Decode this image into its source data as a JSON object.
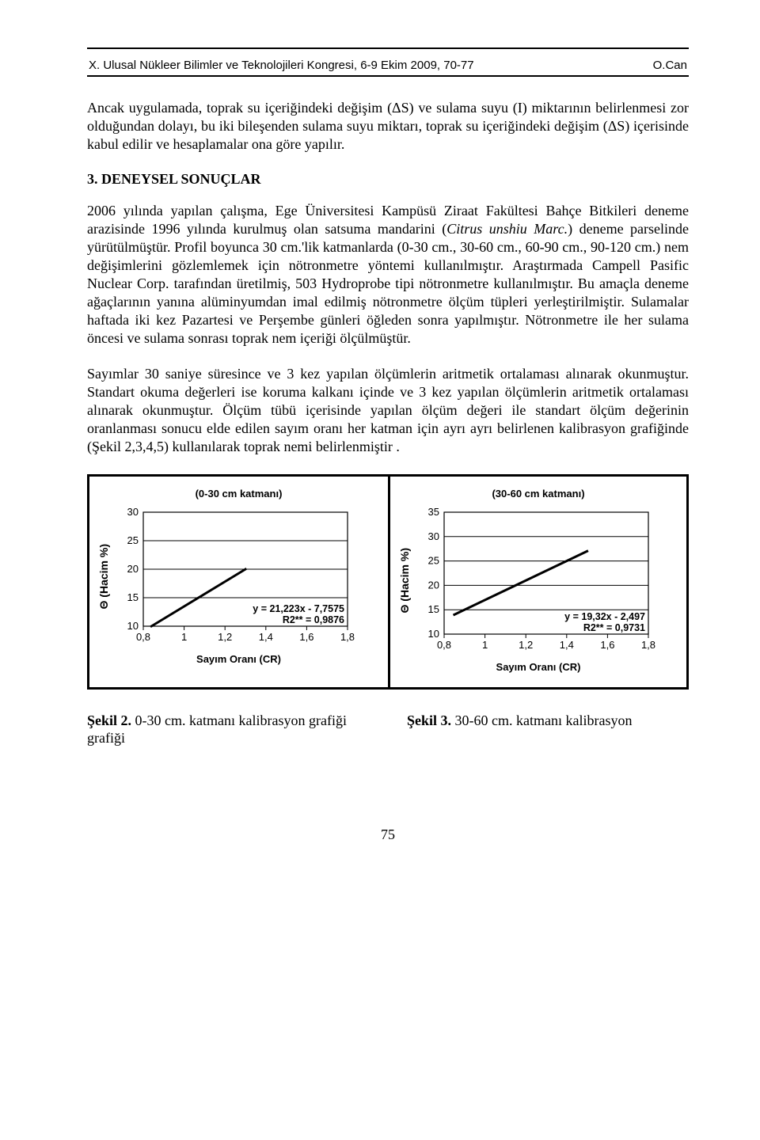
{
  "header": {
    "left": "X. Ulusal Nükleer Bilimler ve Teknolojileri Kongresi, 6-9 Ekim 2009, 70-77",
    "right": "O.Can"
  },
  "para_intro": "Ancak uygulamada, toprak su içeriğindeki değişim (ΔS) ve sulama suyu (I) miktarının belirlenmesi zor olduğundan dolayı, bu iki bileşenden sulama suyu miktarı, toprak su içeriğindeki değişim (ΔS) içerisinde kabul edilir ve hesaplamalar ona göre yapılır.",
  "section_title": "3. DENEYSEL SONUÇLAR",
  "para1_a": "2006 yılında yapılan çalışma, Ege Üniversitesi Kampüsü Ziraat Fakültesi Bahçe Bitkileri deneme arazisinde 1996 yılında kurulmuş olan satsuma mandarini (",
  "para1_it": "Citrus unshiu Marc.",
  "para1_b": ") deneme parselinde yürütülmüştür. Profil boyunca 30 cm.'lik katmanlarda (0-30 cm., 30-60 cm., 60-90 cm., 90-120 cm.) nem değişimlerini gözlemlemek için nötronmetre yöntemi kullanılmıştır. Araştırmada Campell Pasific Nuclear Corp. tarafından üretilmiş, 503 Hydroprobe tipi nötronmetre kullanılmıştır. Bu amaçla deneme ağaçlarının yanına alüminyumdan imal edilmiş nötronmetre ölçüm tüpleri yerleştirilmiştir. Sulamalar haftada iki kez Pazartesi ve Perşembe günleri öğleden sonra yapılmıştır. Nötronmetre ile her sulama öncesi ve sulama sonrası toprak nem içeriği ölçülmüştür.",
  "para2": "Sayımlar 30 saniye süresince ve 3 kez yapılan ölçümlerin aritmetik ortalaması alınarak okunmuştur. Standart okuma değerleri ise koruma kalkanı içinde ve 3 kez yapılan ölçümlerin aritmetik ortalaması alınarak okunmuştur. Ölçüm tübü içerisinde yapılan ölçüm değeri ile standart ölçüm değerinin oranlanması sonucu elde edilen sayım oranı her katman için ayrı ayrı belirlenen kalibrasyon grafiğinde (Şekil 2,3,4,5) kullanılarak toprak nemi belirlenmiştir .",
  "chart1": {
    "title": "(0-30 cm katmanı)",
    "ylabel": "Θ (Hacim %)",
    "xlabel": "Sayım Oranı (CR)",
    "yticks": [
      10,
      15,
      20,
      25,
      30
    ],
    "ylim": [
      10,
      30
    ],
    "xticks": [
      0.8,
      1,
      1.2,
      1.4,
      1.6,
      1.8
    ],
    "xtick_labels": [
      "0,8",
      "1",
      "1,2",
      "1,4",
      "1,6",
      "1,8"
    ],
    "xlim": [
      0.8,
      1.8
    ],
    "line": {
      "x1": 0.84,
      "y1": 10.0,
      "x2": 1.3,
      "y2": 20.0
    },
    "eq1": "y = 21,223x - 7,7575",
    "eq2": "R2** = 0,9876",
    "grid_color": "#000000",
    "line_color": "#000000",
    "line_width": 3,
    "bg": "#ffffff",
    "tick_fontsize": 13
  },
  "chart2": {
    "title": "(30-60 cm katmanı)",
    "ylabel": "Θ (Hacim %)",
    "xlabel": "Sayım Oranı (CR)",
    "yticks": [
      10,
      15,
      20,
      25,
      30,
      35
    ],
    "ylim": [
      10,
      35
    ],
    "xticks": [
      0.8,
      1,
      1.2,
      1.4,
      1.6,
      1.8
    ],
    "xtick_labels": [
      "0,8",
      "1",
      "1,2",
      "1,4",
      "1,6",
      "1,8"
    ],
    "xlim": [
      0.8,
      1.8
    ],
    "line": {
      "x1": 0.85,
      "y1": 14.0,
      "x2": 1.5,
      "y2": 27.0
    },
    "eq1": "y = 19,32x - 2,497",
    "eq2": "R2** = 0,9731",
    "grid_color": "#000000",
    "line_color": "#000000",
    "line_width": 3,
    "bg": "#ffffff",
    "tick_fontsize": 13
  },
  "caption1": {
    "bold": "Şekil 2.",
    "rest": " 0-30 cm. katmanı kalibrasyon grafiği grafiği"
  },
  "caption2": {
    "bold": "Şekil 3.",
    "rest": " 30-60 cm. katmanı kalibrasyon"
  },
  "page_number": "75"
}
